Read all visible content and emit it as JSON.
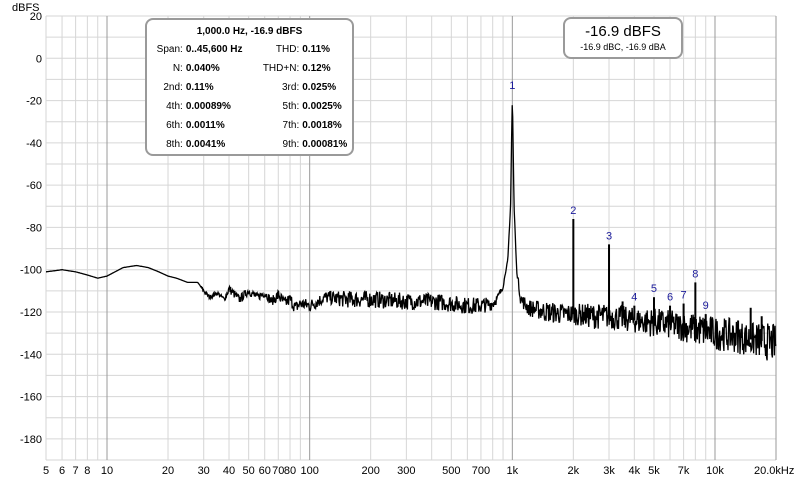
{
  "chart_data": {
    "type": "line",
    "ylabel": "dBFS",
    "x_unit": "Hz",
    "x_scale": "log",
    "xlim": [
      5,
      20000
    ],
    "ylim": [
      -190,
      20
    ],
    "y_ticks": [
      20,
      0,
      -20,
      -40,
      -60,
      -80,
      -100,
      -120,
      -140,
      -160,
      -180
    ],
    "x_ticks": [
      {
        "v": 5,
        "label": "5"
      },
      {
        "v": 6,
        "label": "6"
      },
      {
        "v": 7,
        "label": "7"
      },
      {
        "v": 8,
        "label": "8"
      },
      {
        "v": 10,
        "label": "10"
      },
      {
        "v": 20,
        "label": "20"
      },
      {
        "v": 30,
        "label": "30"
      },
      {
        "v": 40,
        "label": "40"
      },
      {
        "v": 50,
        "label": "50"
      },
      {
        "v": 60,
        "label": "60"
      },
      {
        "v": 70,
        "label": "70"
      },
      {
        "v": 80,
        "label": "80"
      },
      {
        "v": 100,
        "label": "100"
      },
      {
        "v": 200,
        "label": "200"
      },
      {
        "v": 300,
        "label": "300"
      },
      {
        "v": 500,
        "label": "500"
      },
      {
        "v": 700,
        "label": "700"
      },
      {
        "v": 1000,
        "label": "1k"
      },
      {
        "v": 2000,
        "label": "2k"
      },
      {
        "v": 3000,
        "label": "3k"
      },
      {
        "v": 4000,
        "label": "4k"
      },
      {
        "v": 5000,
        "label": "5k"
      },
      {
        "v": 7000,
        "label": "7k"
      },
      {
        "v": 10000,
        "label": "10k"
      },
      {
        "v": 20000,
        "label": "20.0kHz"
      }
    ],
    "grid": true,
    "series": [
      {
        "color": "#000000",
        "x": [
          5,
          5.5,
          6,
          7,
          8,
          9,
          10,
          12,
          14,
          16,
          18,
          20,
          22,
          25,
          28,
          30,
          32,
          35,
          38,
          40,
          45,
          50,
          55,
          60,
          65,
          70,
          75,
          80,
          85,
          90,
          100,
          120,
          150,
          200,
          300,
          400,
          500,
          600,
          700,
          800,
          850,
          900,
          950,
          980,
          1000,
          1020,
          1050,
          1100,
          1200,
          1500,
          1800,
          2000,
          2500,
          3000,
          3500,
          4000,
          5000,
          6000,
          7000,
          8000,
          10000,
          12000,
          15000,
          18000,
          20000
        ],
        "y": [
          -101,
          -100.5,
          -100,
          -101,
          -102.5,
          -104,
          -103,
          -99,
          -98,
          -99,
          -101,
          -103,
          -104,
          -106,
          -106,
          -110,
          -113,
          -111,
          -114,
          -109,
          -114,
          -110,
          -113,
          -111,
          -115,
          -112,
          -116,
          -114,
          -118,
          -116,
          -117,
          -113,
          -114,
          -114,
          -115,
          -115,
          -116,
          -117,
          -117,
          -116,
          -113,
          -108,
          -95,
          -70,
          -17,
          -70,
          -100,
          -114,
          -118,
          -120,
          -121,
          -121,
          -122,
          -122,
          -123,
          -124,
          -125,
          -126,
          -127,
          -128,
          -130,
          -131,
          -133,
          -134,
          -135
        ],
        "noise_amp": [
          0,
          0,
          0,
          0,
          0,
          0,
          0,
          0,
          0,
          0,
          0,
          0,
          0,
          0,
          0,
          1,
          1,
          1,
          1,
          2,
          2,
          2,
          2,
          2,
          2,
          3,
          3,
          3,
          3,
          3,
          3,
          3,
          4,
          4,
          4,
          4,
          4,
          4,
          4,
          3,
          2,
          1,
          0,
          0,
          0,
          0,
          1,
          3,
          4,
          5,
          5,
          5,
          6,
          6,
          6,
          6,
          7,
          7,
          7,
          8,
          8,
          8,
          8,
          9,
          9
        ]
      }
    ],
    "harmonics": [
      {
        "label": "1",
        "f": 1000,
        "db": -17
      },
      {
        "label": "2",
        "f": 2000,
        "db": -76
      },
      {
        "label": "3",
        "f": 3000,
        "db": -88
      },
      {
        "label": "4",
        "f": 4000,
        "db": -117
      },
      {
        "label": "5",
        "f": 5000,
        "db": -113
      },
      {
        "label": "6",
        "f": 6000,
        "db": -117
      },
      {
        "label": "7",
        "f": 7000,
        "db": -116
      },
      {
        "label": "8",
        "f": 8000,
        "db": -106
      },
      {
        "label": "9",
        "f": 9000,
        "db": -121
      }
    ],
    "extra_spikes": [
      {
        "f": 11000,
        "db": -128
      },
      {
        "f": 13000,
        "db": -124
      },
      {
        "f": 15000,
        "db": -118
      },
      {
        "f": 17000,
        "db": -122
      },
      {
        "f": 2500,
        "db": -118
      },
      {
        "f": 3500,
        "db": -115
      }
    ]
  },
  "stats_box": {
    "header": "1,000.0 Hz, -16.9 dBFS",
    "rows": [
      {
        "l1": "Span:",
        "v1": "0..45,600 Hz",
        "l2": "THD:",
        "v2": "0.11%"
      },
      {
        "l1": "N:",
        "v1": "0.040%",
        "l2": "THD+N:",
        "v2": "0.12%"
      },
      {
        "l1": "2nd:",
        "v1": "0.11%",
        "l2": "3rd:",
        "v2": "0.025%"
      },
      {
        "l1": "4th:",
        "v1": "0.00089%",
        "l2": "5th:",
        "v2": "0.0025%"
      },
      {
        "l1": "6th:",
        "v1": "0.0011%",
        "l2": "7th:",
        "v2": "0.0018%"
      },
      {
        "l1": "8th:",
        "v1": "0.0041%",
        "l2": "9th:",
        "v2": "0.00081%"
      }
    ]
  },
  "level_box": {
    "main": "-16.9 dBFS",
    "sub": "-16.9 dBC, -16.9 dBA"
  },
  "colors": {
    "trace": "#000000",
    "grid": "#d6d6d6",
    "grid_major": "#9a9a9a",
    "harmonic_label": "#1a1a9a",
    "box_border": "#9a9a9a"
  }
}
